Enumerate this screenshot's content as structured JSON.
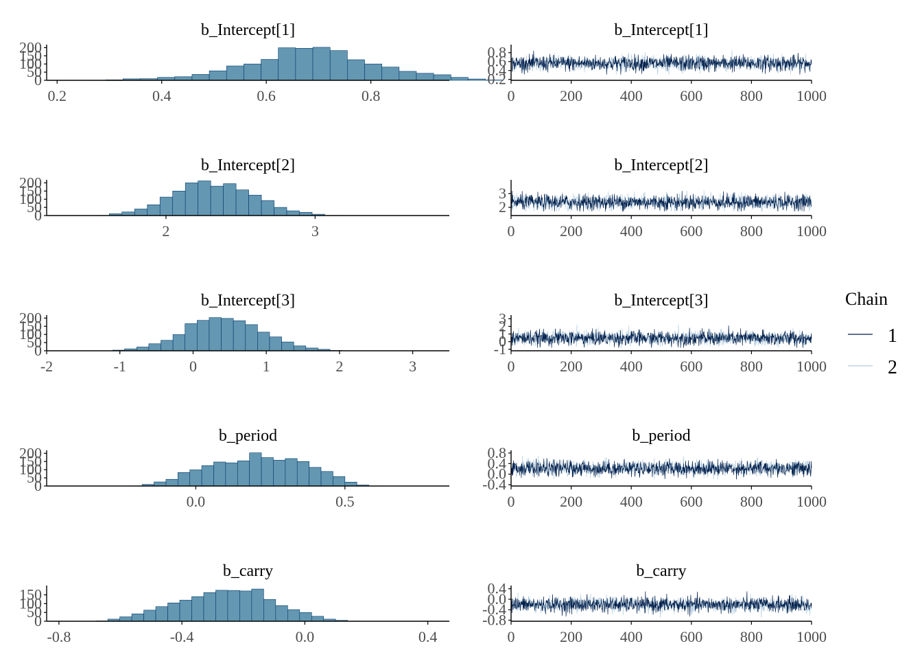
{
  "colors": {
    "hist_fill": "#6497b1",
    "hist_stroke": "#03396c",
    "chain1": "#011f4b",
    "chain2": "#b3cde0",
    "axis": "#000000",
    "tick_text": "#4d4d4d"
  },
  "legend": {
    "title": "Chain",
    "entries": [
      "1",
      "2"
    ]
  },
  "chart_data": [
    {
      "type": "bar",
      "kind": "histogram",
      "title": "b_Intercept[1]",
      "ylim": [
        0,
        210
      ],
      "yticks": [
        "0",
        "50",
        "100",
        "150",
        "200"
      ],
      "xlim": [
        0.18,
        0.95
      ],
      "xticks": [
        "0.2",
        "0.4",
        "0.6",
        "0.8"
      ],
      "bins_start": 0.26,
      "bin_width": 0.033,
      "counts": [
        1,
        3,
        9,
        10,
        18,
        22,
        36,
        58,
        88,
        100,
        128,
        199,
        196,
        202,
        182,
        126,
        100,
        81,
        55,
        43,
        34,
        18,
        8,
        2,
        0
      ]
    },
    {
      "type": "line",
      "kind": "trace",
      "title": "b_Intercept[1]",
      "xlim": [
        0,
        1000
      ],
      "xticks": [
        "0",
        "200",
        "400",
        "600",
        "800",
        "1000"
      ],
      "ylim": [
        0.18,
        0.95
      ],
      "yticks": [
        "0.2",
        "0.4",
        "0.6",
        "0.8"
      ],
      "mean": 0.56,
      "sd": 0.09,
      "min": 0.31,
      "max": 0.91,
      "iterations": 1000,
      "series": [
        {
          "name": "1"
        },
        {
          "name": "2"
        }
      ]
    },
    {
      "type": "bar",
      "kind": "histogram",
      "title": "b_Intercept[2]",
      "ylim": [
        0,
        210
      ],
      "yticks": [
        "0",
        "50",
        "100",
        "150",
        "200"
      ],
      "xlim": [
        1.2,
        3.9
      ],
      "xticks": [
        "2",
        "3"
      ],
      "bins_start": 1.45,
      "bin_width": 0.085,
      "counts": [
        0,
        1,
        11,
        22,
        40,
        66,
        113,
        150,
        200,
        212,
        180,
        195,
        157,
        125,
        92,
        50,
        29,
        20,
        8,
        1
      ]
    },
    {
      "type": "line",
      "kind": "trace",
      "title": "b_Intercept[2]",
      "xlim": [
        0,
        1000
      ],
      "xticks": [
        "0",
        "200",
        "400",
        "600",
        "800",
        "1000"
      ],
      "ylim": [
        1.4,
        3.9
      ],
      "yticks": [
        "2",
        "3"
      ],
      "mean": 2.37,
      "sd": 0.29,
      "min": 1.7,
      "max": 3.6,
      "iterations": 1000,
      "series": [
        {
          "name": "1"
        },
        {
          "name": "2"
        }
      ]
    },
    {
      "type": "bar",
      "kind": "histogram",
      "title": "b_Intercept[3]",
      "ylim": [
        0,
        210
      ],
      "yticks": [
        "0",
        "50",
        "100",
        "150",
        "200"
      ],
      "xlim": [
        -2.0,
        3.5
      ],
      "xticks": [
        "-2",
        "-1",
        "0",
        "1",
        "2",
        "3"
      ],
      "bins_start": -1.1,
      "bin_width": 0.165,
      "counts": [
        4,
        12,
        23,
        43,
        64,
        99,
        166,
        186,
        203,
        198,
        184,
        160,
        114,
        85,
        54,
        30,
        17,
        9,
        2,
        0
      ]
    },
    {
      "type": "line",
      "kind": "trace",
      "title": "b_Intercept[3]",
      "xlim": [
        0,
        1000
      ],
      "xticks": [
        "0",
        "200",
        "400",
        "600",
        "800",
        "1000"
      ],
      "ylim": [
        -1.2,
        3.3
      ],
      "yticks": [
        "-1",
        "0",
        "1",
        "2",
        "3"
      ],
      "mean": 0.45,
      "sd": 0.5,
      "min": -0.8,
      "max": 2.6,
      "iterations": 1000,
      "series": [
        {
          "name": "1"
        },
        {
          "name": "2"
        }
      ]
    },
    {
      "type": "bar",
      "kind": "histogram",
      "title": "b_period",
      "ylim": [
        0,
        210
      ],
      "yticks": [
        "0",
        "50",
        "100",
        "150",
        "200"
      ],
      "xlim": [
        -0.5,
        0.85
      ],
      "xticks": [
        "0.0",
        "0.5"
      ],
      "bins_start": -0.22,
      "bin_width": 0.04,
      "counts": [
        1,
        10,
        25,
        41,
        83,
        99,
        125,
        147,
        142,
        154,
        203,
        174,
        158,
        168,
        150,
        114,
        89,
        58,
        24,
        6,
        1
      ]
    },
    {
      "type": "line",
      "kind": "trace",
      "title": "b_period",
      "xlim": [
        0,
        1000
      ],
      "xticks": [
        "0",
        "200",
        "400",
        "600",
        "800",
        "1000"
      ],
      "ylim": [
        -0.45,
        0.85
      ],
      "yticks": [
        "-0.4",
        "0.0",
        "0.4",
        "0.8"
      ],
      "mean": 0.22,
      "sd": 0.15,
      "min": -0.2,
      "max": 0.68,
      "iterations": 1000,
      "series": [
        {
          "name": "1"
        },
        {
          "name": "2"
        }
      ]
    },
    {
      "type": "bar",
      "kind": "histogram",
      "title": "b_carry",
      "ylim": [
        0,
        195
      ],
      "yticks": [
        "0",
        "50",
        "100",
        "150"
      ],
      "xlim": [
        -0.84,
        0.47
      ],
      "xticks": [
        "-0.8",
        "-0.4",
        "0.0",
        "0.4"
      ],
      "bins_start": -0.68,
      "bin_width": 0.039,
      "counts": [
        2,
        12,
        25,
        42,
        63,
        83,
        104,
        120,
        140,
        163,
        176,
        175,
        172,
        183,
        124,
        89,
        66,
        50,
        28,
        12,
        5,
        1
      ]
    },
    {
      "type": "line",
      "kind": "trace",
      "title": "b_carry",
      "xlim": [
        0,
        1000
      ],
      "xticks": [
        "0",
        "200",
        "400",
        "600",
        "800",
        "1000"
      ],
      "ylim": [
        -0.84,
        0.47
      ],
      "yticks": [
        "-0.8",
        "-0.4",
        "0.0",
        "0.4"
      ],
      "mean": -0.21,
      "sd": 0.15,
      "min": -0.75,
      "max": 0.3,
      "iterations": 1000,
      "series": [
        {
          "name": "1"
        },
        {
          "name": "2"
        }
      ]
    }
  ]
}
